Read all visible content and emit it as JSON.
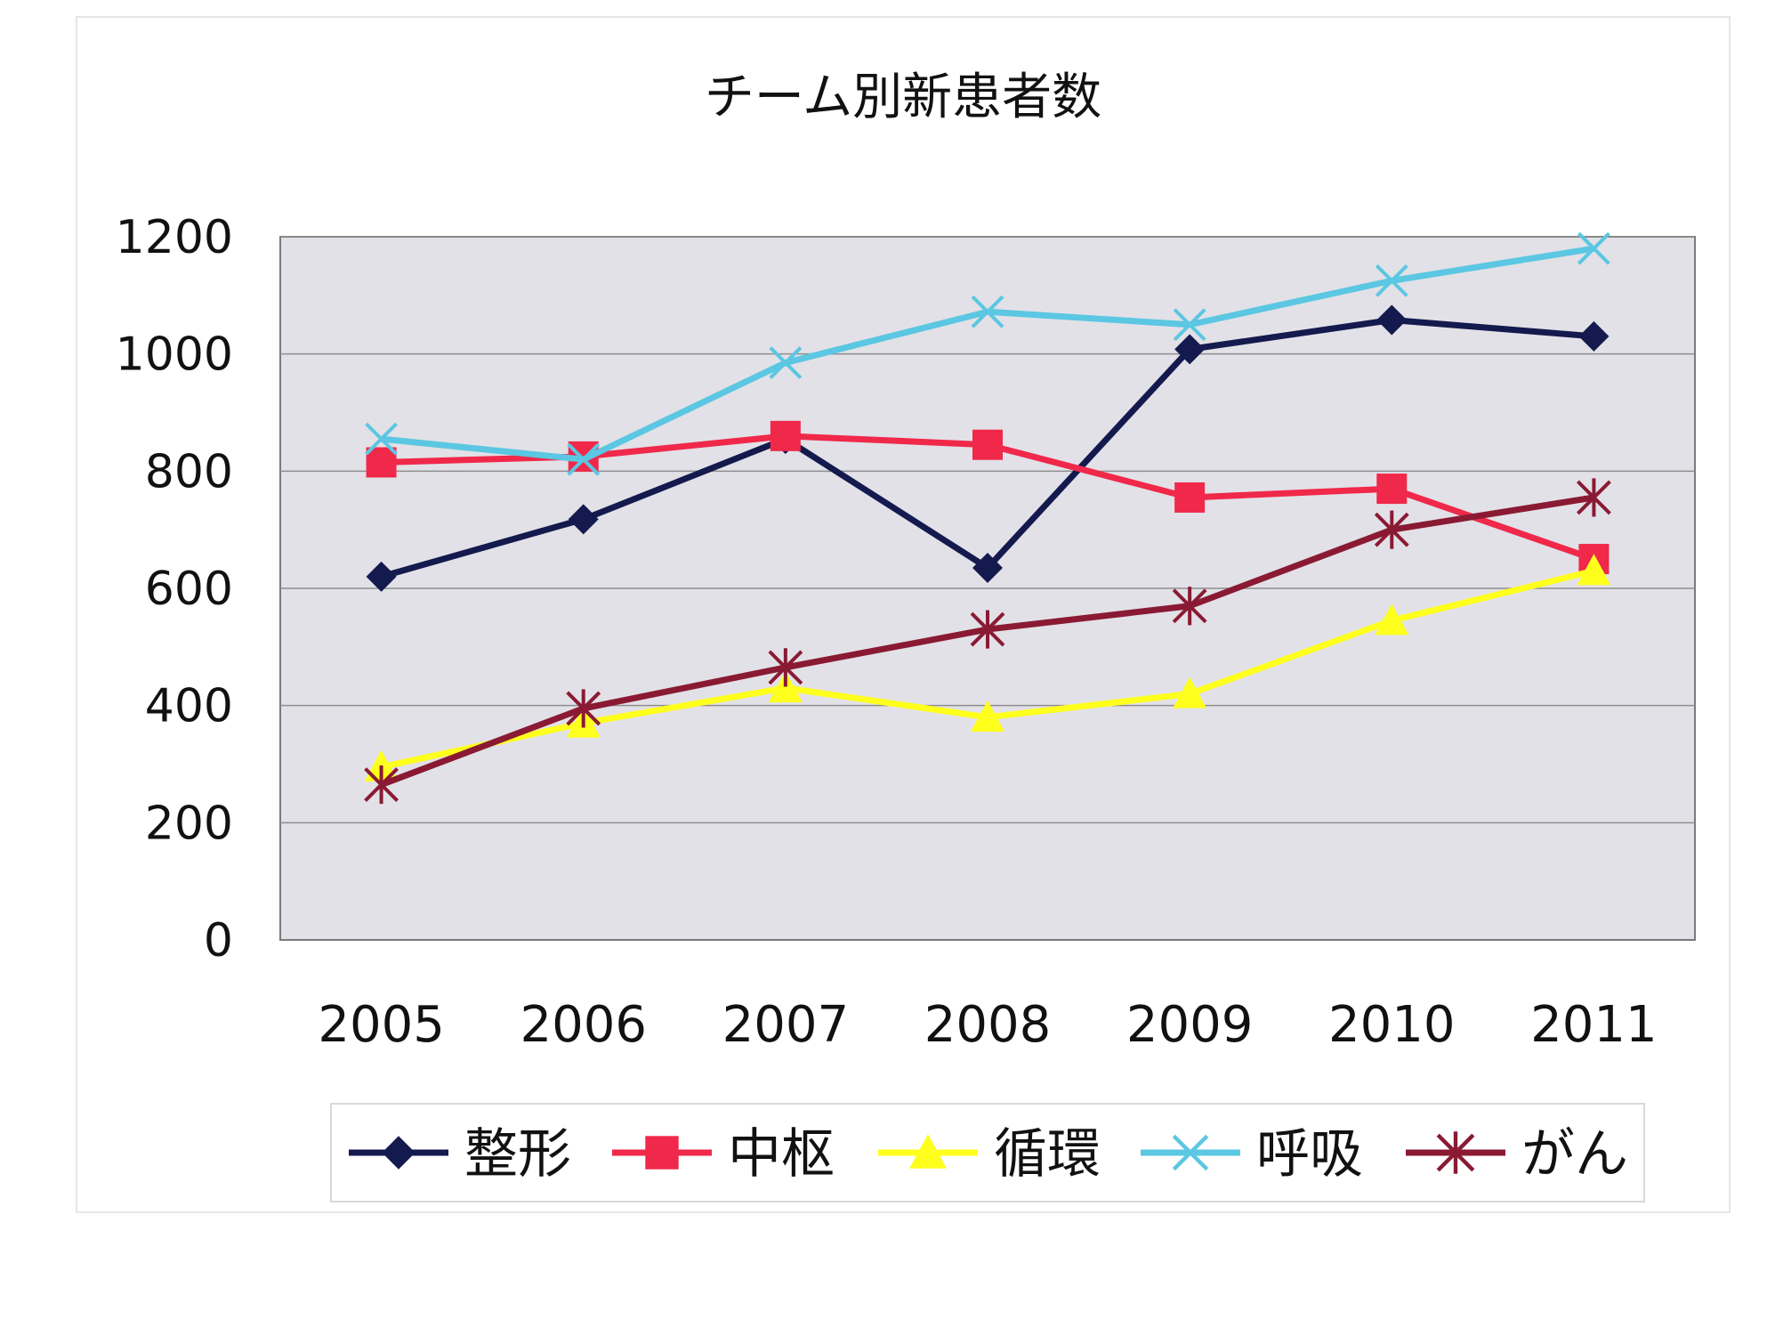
{
  "chart_data": {
    "type": "line",
    "title": "チーム別新患者数",
    "categories": [
      "2005",
      "2006",
      "2007",
      "2008",
      "2009",
      "2010",
      "2011"
    ],
    "ylim": [
      0,
      1200
    ],
    "yticks": [
      "0",
      "200",
      "400",
      "600",
      "800",
      "1000",
      "1200"
    ],
    "grid": true,
    "legend_position": "bottom",
    "series": [
      {
        "name": "整形",
        "marker": "diamond",
        "color": "#141a4e",
        "values": [
          620,
          718,
          855,
          635,
          1008,
          1058,
          1030
        ]
      },
      {
        "name": "中枢",
        "marker": "square",
        "color": "#f0284a",
        "values": [
          815,
          825,
          860,
          845,
          755,
          770,
          650
        ]
      },
      {
        "name": "循環",
        "marker": "triangle",
        "color": "#ffff1e",
        "values": [
          295,
          370,
          430,
          380,
          420,
          545,
          630
        ]
      },
      {
        "name": "呼吸",
        "marker": "x",
        "color": "#5bc7e2",
        "values": [
          855,
          820,
          985,
          1072,
          1050,
          1125,
          1180
        ]
      },
      {
        "name": "がん",
        "marker": "asterisk",
        "color": "#8a1a33",
        "values": [
          265,
          395,
          465,
          530,
          570,
          700,
          755
        ]
      }
    ]
  }
}
